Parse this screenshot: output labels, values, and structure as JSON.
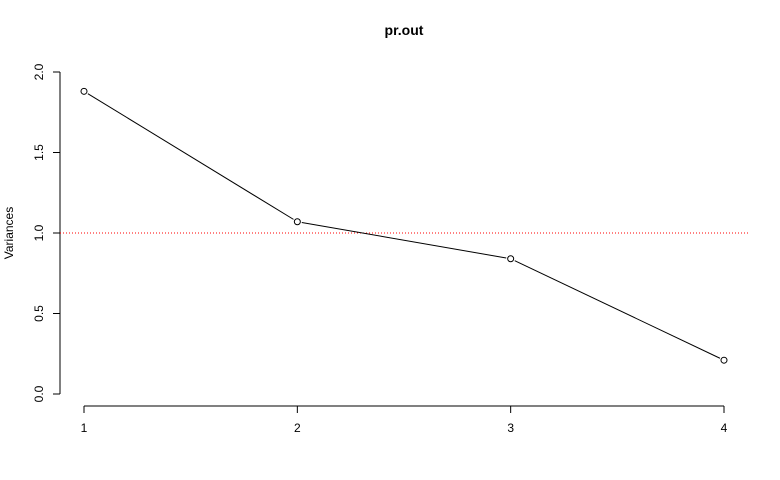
{
  "chart_data": {
    "type": "line",
    "title": "pr.out",
    "xlabel": "",
    "ylabel": "Variances",
    "x": [
      1,
      2,
      3,
      4
    ],
    "series": [
      {
        "values": [
          1.88,
          1.07,
          0.84,
          0.21
        ]
      }
    ],
    "xticks": [
      "1",
      "2",
      "3",
      "4"
    ],
    "yticks": [
      "0.0",
      "0.5",
      "1.0",
      "1.5",
      "2.0"
    ],
    "ylim": [
      0,
      2
    ],
    "reference_line": {
      "y": 1.0,
      "color": "#ff0000",
      "style": "dotted"
    },
    "grid": false,
    "line_color": "#000000",
    "marker": "open-circle"
  }
}
